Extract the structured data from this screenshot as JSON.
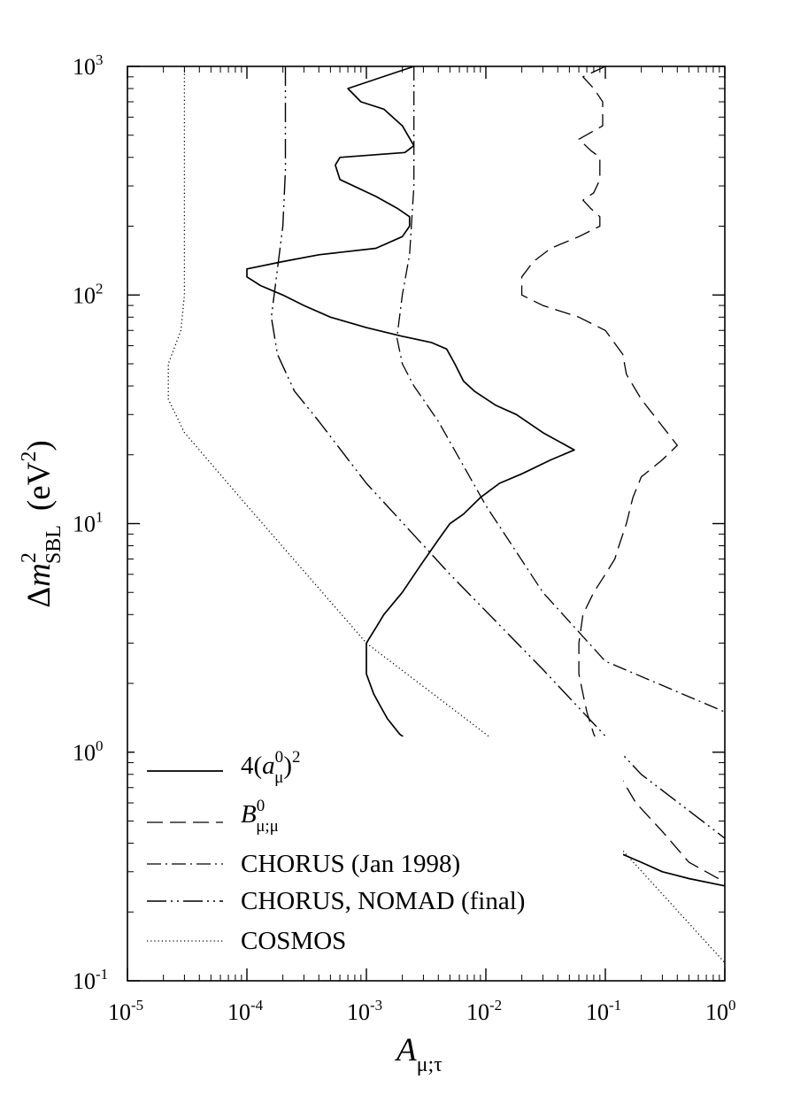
{
  "chart_data": {
    "type": "line",
    "xscale": "log",
    "yscale": "log",
    "xlim": [
      1e-05,
      1
    ],
    "ylim": [
      0.1,
      1000
    ],
    "grid": false,
    "legend_position": "bottom-left",
    "xlabel": {
      "main": "A",
      "sub": "μ;τ"
    },
    "ylabel": {
      "prefix": "Δ",
      "var": "m",
      "sup": "2",
      "sub": "SBL",
      "unit_open": "(eV",
      "unit_sup": "2",
      "unit_close": ")"
    },
    "x_ticks": [
      {
        "value": 1e-05,
        "base": "10",
        "exp": "-5"
      },
      {
        "value": 0.0001,
        "base": "10",
        "exp": "-4"
      },
      {
        "value": 0.001,
        "base": "10",
        "exp": "-3"
      },
      {
        "value": 0.01,
        "base": "10",
        "exp": "-2"
      },
      {
        "value": 0.1,
        "base": "10",
        "exp": "-1"
      },
      {
        "value": 1,
        "base": "10",
        "exp": "0"
      }
    ],
    "y_ticks": [
      {
        "value": 0.1,
        "base": "10",
        "exp": "-1"
      },
      {
        "value": 1,
        "base": "10",
        "exp": "0"
      },
      {
        "value": 10,
        "base": "10",
        "exp": "1"
      },
      {
        "value": 100,
        "base": "10",
        "exp": "2"
      },
      {
        "value": 1000,
        "base": "10",
        "exp": "3"
      }
    ],
    "series": [
      {
        "id": "s1",
        "style": "solid",
        "legend": {
          "prefix": "4(",
          "var": "a",
          "sub": "μ",
          "sup": "0",
          "suffix": ")",
          "outer_sup": "2"
        },
        "points": [
          [
            0.0025,
            1000
          ],
          [
            0.0007,
            800
          ],
          [
            0.0009,
            700
          ],
          [
            0.0014,
            650
          ],
          [
            0.002,
            550
          ],
          [
            0.0025,
            450
          ],
          [
            0.0021,
            420
          ],
          [
            0.0006,
            400
          ],
          [
            0.00055,
            370
          ],
          [
            0.0006,
            320
          ],
          [
            0.0012,
            270
          ],
          [
            0.0018,
            240
          ],
          [
            0.0023,
            220
          ],
          [
            0.0023,
            200
          ],
          [
            0.002,
            180
          ],
          [
            0.0012,
            160
          ],
          [
            0.0004,
            150
          ],
          [
            0.0002,
            140
          ],
          [
            0.0001,
            130
          ],
          [
            0.0001,
            120
          ],
          [
            0.00013,
            110
          ],
          [
            0.0002,
            100
          ],
          [
            0.0003,
            90
          ],
          [
            0.0005,
            80
          ],
          [
            0.001,
            72
          ],
          [
            0.002,
            66
          ],
          [
            0.0035,
            62
          ],
          [
            0.0047,
            58
          ],
          [
            0.0055,
            50
          ],
          [
            0.0065,
            42
          ],
          [
            0.008,
            38
          ],
          [
            0.012,
            33
          ],
          [
            0.018,
            30
          ],
          [
            0.03,
            25
          ],
          [
            0.055,
            21
          ],
          [
            0.035,
            19
          ],
          [
            0.02,
            16.5
          ],
          [
            0.013,
            15
          ],
          [
            0.009,
            13
          ],
          [
            0.0065,
            11
          ],
          [
            0.005,
            10
          ],
          [
            0.004,
            8.5
          ],
          [
            0.0028,
            6.5
          ],
          [
            0.002,
            5
          ],
          [
            0.0014,
            4
          ],
          [
            0.0012,
            3.5
          ],
          [
            0.001,
            3
          ],
          [
            0.001,
            2.2
          ],
          [
            0.00115,
            1.8
          ],
          [
            0.0013,
            1.6
          ],
          [
            0.0015,
            1.4
          ],
          [
            0.0019,
            1.2
          ],
          [
            0.003,
            1
          ],
          [
            0.006,
            0.85
          ],
          [
            0.01,
            0.75
          ],
          [
            0.02,
            0.6
          ],
          [
            0.04,
            0.5
          ],
          [
            0.07,
            0.42
          ],
          [
            0.12,
            0.37
          ],
          [
            0.2,
            0.33
          ],
          [
            0.3,
            0.3
          ],
          [
            0.5,
            0.28
          ],
          [
            1,
            0.26
          ]
        ]
      },
      {
        "id": "s2",
        "style": "dashed",
        "legend": {
          "var": "B",
          "sup": "0",
          "sub": "μ;μ"
        },
        "points": [
          [
            0.1,
            1000
          ],
          [
            0.065,
            900
          ],
          [
            0.08,
            800
          ],
          [
            0.095,
            700
          ],
          [
            0.095,
            550
          ],
          [
            0.06,
            480
          ],
          [
            0.075,
            430
          ],
          [
            0.09,
            400
          ],
          [
            0.09,
            320
          ],
          [
            0.08,
            280
          ],
          [
            0.065,
            260
          ],
          [
            0.075,
            240
          ],
          [
            0.09,
            220
          ],
          [
            0.09,
            200
          ],
          [
            0.06,
            180
          ],
          [
            0.035,
            160
          ],
          [
            0.025,
            140
          ],
          [
            0.02,
            120
          ],
          [
            0.02,
            100
          ],
          [
            0.03,
            90
          ],
          [
            0.06,
            80
          ],
          [
            0.1,
            70
          ],
          [
            0.14,
            55
          ],
          [
            0.15,
            45
          ],
          [
            0.2,
            35
          ],
          [
            0.4,
            22
          ],
          [
            0.3,
            19
          ],
          [
            0.2,
            16
          ],
          [
            0.17,
            13
          ],
          [
            0.15,
            10
          ],
          [
            0.13,
            8
          ],
          [
            0.12,
            7
          ],
          [
            0.1,
            6
          ],
          [
            0.08,
            5
          ],
          [
            0.065,
            4
          ],
          [
            0.06,
            3
          ],
          [
            0.06,
            2.2
          ],
          [
            0.065,
            1.8
          ],
          [
            0.07,
            1.5
          ],
          [
            0.08,
            1.2
          ],
          [
            0.095,
            1
          ],
          [
            0.13,
            0.8
          ],
          [
            0.18,
            0.6
          ],
          [
            0.3,
            0.45
          ],
          [
            0.5,
            0.33
          ],
          [
            1,
            0.27
          ]
        ]
      },
      {
        "id": "s3",
        "style": "dash-dot",
        "legend": {
          "text": "CHORUS (Jan 1998)"
        },
        "points": [
          [
            0.0025,
            1000
          ],
          [
            0.0025,
            300
          ],
          [
            0.0023,
            150
          ],
          [
            0.002,
            100
          ],
          [
            0.0018,
            65
          ],
          [
            0.002,
            50
          ],
          [
            0.0025,
            40
          ],
          [
            0.004,
            28
          ],
          [
            0.01,
            12
          ],
          [
            0.03,
            5
          ],
          [
            0.1,
            2.5
          ],
          [
            1,
            1.5
          ]
        ]
      },
      {
        "id": "s4",
        "style": "dash-dot-dot",
        "legend": {
          "text": "CHORUS, NOMAD (final)"
        },
        "points": [
          [
            0.00021,
            1000
          ],
          [
            0.00021,
            350
          ],
          [
            0.0002,
            200
          ],
          [
            0.00018,
            130
          ],
          [
            0.00016,
            80
          ],
          [
            0.00018,
            55
          ],
          [
            0.00025,
            38
          ],
          [
            0.0004,
            28
          ],
          [
            0.001,
            15
          ],
          [
            0.005,
            6
          ],
          [
            0.03,
            2.3
          ],
          [
            0.2,
            0.8
          ],
          [
            1,
            0.42
          ]
        ]
      },
      {
        "id": "s5",
        "style": "dotted",
        "legend": {
          "text": "COSMOS"
        },
        "points": [
          [
            3e-05,
            1000
          ],
          [
            3e-05,
            100
          ],
          [
            2.8e-05,
            70
          ],
          [
            2.2e-05,
            50
          ],
          [
            2.2e-05,
            35
          ],
          [
            3e-05,
            25
          ],
          [
            0.0001,
            12
          ],
          [
            0.001,
            3
          ],
          [
            0.01,
            1.2
          ],
          [
            0.1,
            0.45
          ],
          [
            1,
            0.12
          ]
        ]
      }
    ]
  }
}
